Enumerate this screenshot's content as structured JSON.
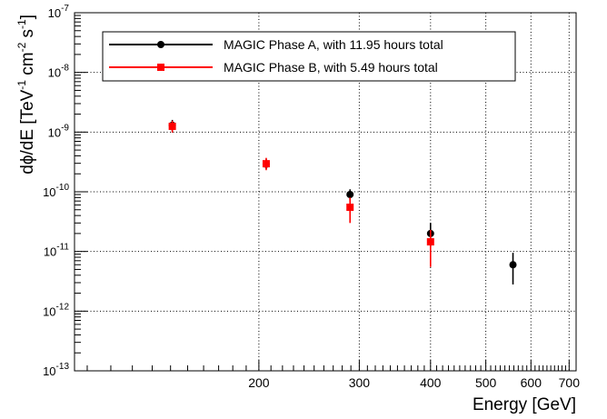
{
  "chart_data": {
    "type": "scatter",
    "xscale": "log",
    "yscale": "log",
    "xlim": [
      95,
      720
    ],
    "ylim": [
      1e-13,
      1e-07
    ],
    "xticks": [
      200,
      300,
      400,
      500,
      600,
      700
    ],
    "yticks": [
      {
        "value": 1e-13,
        "mant": "10",
        "exp": "-13"
      },
      {
        "value": 1e-12,
        "mant": "10",
        "exp": "-12"
      },
      {
        "value": 1e-11,
        "mant": "10",
        "exp": "-11"
      },
      {
        "value": 1e-10,
        "mant": "10",
        "exp": "-10"
      },
      {
        "value": 1e-09,
        "mant": "10",
        "exp": "-9"
      },
      {
        "value": 1e-08,
        "mant": "10",
        "exp": "-8"
      },
      {
        "value": 1e-07,
        "mant": "10",
        "exp": "-7"
      }
    ],
    "xlabel": "Energy [GeV]",
    "ylabel": {
      "parts": [
        "dϕ/dE [TeV",
        "-1",
        " cm",
        "-2",
        " s",
        "-1",
        "]"
      ]
    },
    "grid": true,
    "legend_position": "top",
    "series": [
      {
        "name": "MAGIC Phase A, with 11.95 hours total",
        "color": "#000000",
        "marker": "circle",
        "points": [
          {
            "x": 141,
            "y": 1.3e-09,
            "ylo": 1.05e-09,
            "yhi": 1.6e-09
          },
          {
            "x": 206,
            "y": 2.9e-10,
            "ylo": 2.4e-10,
            "yhi": 3.5e-10
          },
          {
            "x": 289,
            "y": 9e-11,
            "ylo": 7.2e-11,
            "yhi": 1.1e-10
          },
          {
            "x": 400,
            "y": 2e-11,
            "ylo": 1.2e-11,
            "yhi": 3e-11
          },
          {
            "x": 558,
            "y": 6e-12,
            "ylo": 2.8e-12,
            "yhi": 9.5e-12
          }
        ]
      },
      {
        "name": "MAGIC Phase B, with 5.49 hours total",
        "color": "#ff0000",
        "marker": "square",
        "points": [
          {
            "x": 141,
            "y": 1.25e-09,
            "ylo": 9.8e-10,
            "yhi": 1.55e-09
          },
          {
            "x": 206,
            "y": 2.95e-10,
            "ylo": 2.3e-10,
            "yhi": 3.7e-10
          },
          {
            "x": 289,
            "y": 5.5e-11,
            "ylo": 3e-11,
            "yhi": 8e-11
          },
          {
            "x": 400,
            "y": 1.45e-11,
            "ylo": 5.5e-12,
            "yhi": 2.3e-11
          }
        ]
      }
    ]
  }
}
